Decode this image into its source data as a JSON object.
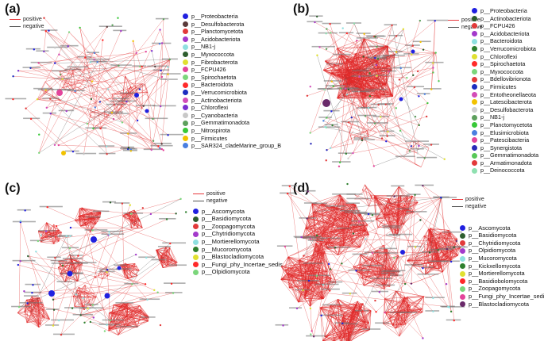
{
  "panels": [
    {
      "label": "(a)",
      "edge_legend": [
        {
          "name": "positive",
          "color": "#e8383d"
        },
        {
          "name": "negative",
          "color": "#555555"
        }
      ],
      "taxa": [
        {
          "name": "p__Proteobacteria",
          "color": "#2020e0"
        },
        {
          "name": "p__Desulfobacterota",
          "color": "#5a3a3a"
        },
        {
          "name": "p__Planctomycetota",
          "color": "#e23a3a"
        },
        {
          "name": "p__Acidobacteriota",
          "color": "#a33acb"
        },
        {
          "name": "p__NB1-j",
          "color": "#8fe0e0"
        },
        {
          "name": "p__Myxococcota",
          "color": "#2e5e2e"
        },
        {
          "name": "p__Fibrobacterota",
          "color": "#e0e030"
        },
        {
          "name": "p__FCPU426",
          "color": "#e3449b"
        },
        {
          "name": "p__Spirochaetota",
          "color": "#7bd67b"
        },
        {
          "name": "p__Bacteroidota",
          "color": "#ff2a2a"
        },
        {
          "name": "p__Verrucomicrobiota",
          "color": "#1c2dc0"
        },
        {
          "name": "p__Actinobacteriota",
          "color": "#d34db8"
        },
        {
          "name": "p__Chloroflexi",
          "color": "#7a2fd0"
        },
        {
          "name": "p__Cyanobacteria",
          "color": "#c8c8c8"
        },
        {
          "name": "p__Gemmatimonadota",
          "color": "#5da05d"
        },
        {
          "name": "p__Nitrospirota",
          "color": "#38c838"
        },
        {
          "name": "p__Firmicutes",
          "color": "#f2c200"
        },
        {
          "name": "p__SAR324_cladeMarine_group_B",
          "color": "#4a7fe0"
        }
      ]
    },
    {
      "label": "(b)",
      "edge_legend": [
        {
          "name": "positive",
          "color": "#e8383d"
        },
        {
          "name": "negative",
          "color": "#555555"
        }
      ],
      "taxa": [
        {
          "name": "p__Proteobacteria",
          "color": "#2020e0"
        },
        {
          "name": "p__Actinobacteriota",
          "color": "#2e5e2e"
        },
        {
          "name": "p__FCPU426",
          "color": "#e23a3a"
        },
        {
          "name": "p__Acidobacteriota",
          "color": "#a33acb"
        },
        {
          "name": "p__Bacteroidota",
          "color": "#8fe0e0"
        },
        {
          "name": "p__Verrucomicrobiota",
          "color": "#2e7f2e"
        },
        {
          "name": "p__Chloroflexi",
          "color": "#e0e030"
        },
        {
          "name": "p__Spirochaetota",
          "color": "#ff2a2a"
        },
        {
          "name": "p__Myxococcota",
          "color": "#7bd67b"
        },
        {
          "name": "p__Bdellovibrionota",
          "color": "#e23a3a"
        },
        {
          "name": "p__Firmicutes",
          "color": "#1c2dc0"
        },
        {
          "name": "p__Entotheonellaeota",
          "color": "#d34db8"
        },
        {
          "name": "p__Latescibacterota",
          "color": "#f2c200"
        },
        {
          "name": "p__Desulfobacterota",
          "color": "#d0d0d0"
        },
        {
          "name": "p__NB1-j",
          "color": "#5da05d"
        },
        {
          "name": "p__Planctomycetota",
          "color": "#38c838"
        },
        {
          "name": "p__Elusimicrobiota",
          "color": "#4a7fe0"
        },
        {
          "name": "p__Patescibacteria",
          "color": "#e3449b"
        },
        {
          "name": "p__Synergistota",
          "color": "#2a2ab8"
        },
        {
          "name": "p__Gemmatimonadota",
          "color": "#58c858"
        },
        {
          "name": "p__Armatimonadota",
          "color": "#e23a3a"
        },
        {
          "name": "p__Deinococcota",
          "color": "#8fe0b0"
        }
      ]
    },
    {
      "label": "(c)",
      "edge_legend": [
        {
          "name": "positive",
          "color": "#e8383d"
        },
        {
          "name": "negative",
          "color": "#555555"
        }
      ],
      "taxa": [
        {
          "name": "p__Ascomycota",
          "color": "#2020e0"
        },
        {
          "name": "p__Basidiomycota",
          "color": "#2e5e2e"
        },
        {
          "name": "p__Zoopagomycota",
          "color": "#e23a3a"
        },
        {
          "name": "p__Chytridiomycota",
          "color": "#a33acb"
        },
        {
          "name": "p__Mortierellomycota",
          "color": "#8fe0e0"
        },
        {
          "name": "p__Mucoromycota",
          "color": "#2e7f2e"
        },
        {
          "name": "p__Blastocladiomycota",
          "color": "#e0e030"
        },
        {
          "name": "p__Fungi_phy_Incertae_sedis",
          "color": "#ff2a2a"
        },
        {
          "name": "p__Olpidiomycota",
          "color": "#7bd67b"
        }
      ]
    },
    {
      "label": "(d)",
      "edge_legend": [
        {
          "name": "positive",
          "color": "#e8383d"
        },
        {
          "name": "negative",
          "color": "#555555"
        }
      ],
      "taxa": [
        {
          "name": "p__Ascomycota",
          "color": "#2020e0"
        },
        {
          "name": "p__Basidiomycota",
          "color": "#2e5e2e"
        },
        {
          "name": "p__Chytridiomycota",
          "color": "#e23a3a"
        },
        {
          "name": "p__Olpidiomycota",
          "color": "#a33acb"
        },
        {
          "name": "p__Mucoromycota",
          "color": "#8fe0e0"
        },
        {
          "name": "p__Kickxellomycota",
          "color": "#2e7f2e"
        },
        {
          "name": "p__Mortierellomycota",
          "color": "#e0e030"
        },
        {
          "name": "p__Basidiobolomycota",
          "color": "#ff2a2a"
        },
        {
          "name": "p__Zoopagomycota",
          "color": "#7bd67b"
        },
        {
          "name": "p__Fungi_phy_Incertae_sedis",
          "color": "#e3449b"
        },
        {
          "name": "p__Blastocladiomycota",
          "color": "#6a2a6a"
        }
      ]
    }
  ]
}
